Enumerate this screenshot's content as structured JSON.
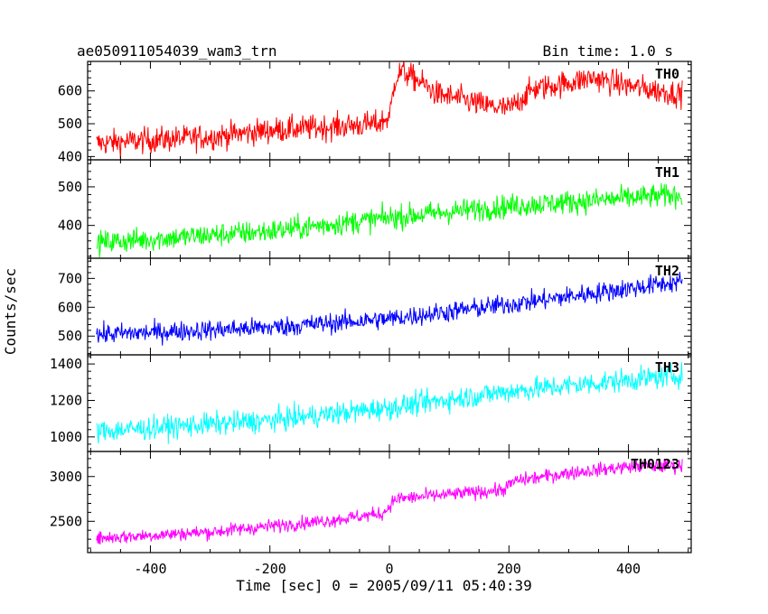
{
  "header": {
    "title": "ae050911054039_wam3_trn",
    "bin_time": "Bin time: 1.0 s"
  },
  "chart_data": {
    "type": "line",
    "title": "ae050911054039_wam3_trn",
    "subtitle": "Bin time: 1.0 s",
    "xlabel": "Time [sec] 0 = 2005/09/11 05:40:39",
    "ylabel": "Counts/sec",
    "xlim": [
      -505,
      505
    ],
    "xticks": [
      -400,
      -200,
      0,
      200,
      400
    ],
    "grid": false,
    "panels": [
      {
        "name": "TH0",
        "color": "#ff0000",
        "ylim": [
          390,
          690
        ],
        "yticks": [
          400,
          500,
          600
        ],
        "x": [
          -490,
          -400,
          -300,
          -200,
          -100,
          -20,
          0,
          10,
          20,
          50,
          80,
          120,
          160,
          200,
          240,
          300,
          340,
          400,
          450,
          490
        ],
        "values": [
          440,
          450,
          460,
          480,
          490,
          500,
          520,
          640,
          660,
          630,
          590,
          575,
          555,
          545,
          605,
          625,
          640,
          615,
          600,
          590
        ],
        "noise": 28
      },
      {
        "name": "TH1",
        "color": "#00ff00",
        "ylim": [
          315,
          570
        ],
        "yticks": [
          400,
          500
        ],
        "x": [
          -490,
          -200,
          0,
          200,
          490
        ],
        "values": [
          355,
          385,
          420,
          450,
          480
        ],
        "noise": 22
      },
      {
        "name": "TH2",
        "color": "#0000ff",
        "ylim": [
          435,
          770
        ],
        "yticks": [
          500,
          600,
          700
        ],
        "x": [
          -490,
          -200,
          0,
          200,
          490
        ],
        "values": [
          505,
          530,
          560,
          610,
          690
        ],
        "noise": 25
      },
      {
        "name": "TH3",
        "color": "#00ffff",
        "ylim": [
          920,
          1450
        ],
        "yticks": [
          1000,
          1200,
          1400
        ],
        "x": [
          -490,
          -200,
          0,
          200,
          490
        ],
        "values": [
          1030,
          1090,
          1160,
          1250,
          1340
        ],
        "noise": 45
      },
      {
        "name": "TH0123",
        "color": "#ff00ff",
        "ylim": [
          2150,
          3280
        ],
        "yticks": [
          2500,
          3000
        ],
        "x": [
          -490,
          -300,
          -100,
          -10,
          10,
          100,
          190,
          210,
          300,
          400,
          490
        ],
        "values": [
          2310,
          2380,
          2510,
          2590,
          2750,
          2800,
          2850,
          2950,
          3040,
          3110,
          3120
        ],
        "noise": 55
      }
    ]
  }
}
